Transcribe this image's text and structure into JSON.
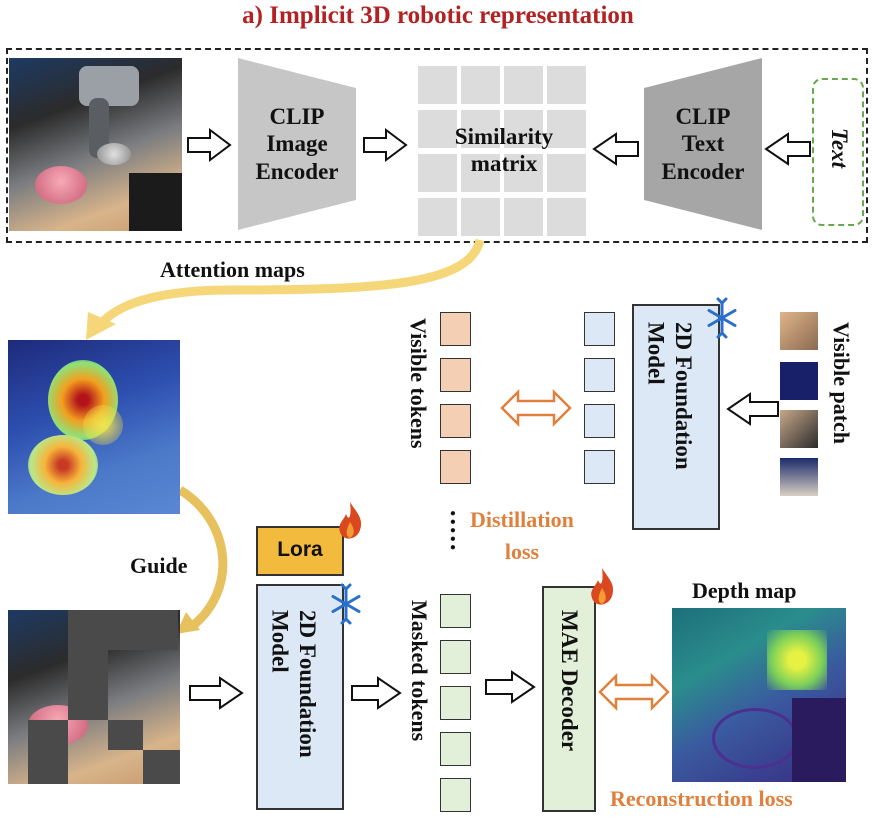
{
  "title": "a) Implicit 3D robotic representation",
  "top_row": {
    "clip_image_encoder": "CLIP\nImage\nEncoder",
    "similarity_matrix": "Similarity\nmatrix",
    "clip_text_encoder": "CLIP\nText\nEncoder",
    "text_input": "Text"
  },
  "labels": {
    "attention_maps": "Attention maps",
    "guide": "Guide",
    "lora": "Lora",
    "visible_tokens": "Visible tokens",
    "visible_patch": "Visible patch",
    "masked_tokens": "Masked tokens",
    "distillation_loss": "Distillation\nloss",
    "depth_map": "Depth map",
    "reconstruction_loss": "Reconstruction loss",
    "mae_decoder": "MAE Decoder",
    "foundation_model_top": "2D Foundation\nModel",
    "foundation_model_bottom": "2D Foundation\nModel",
    "ellipsis": "....."
  },
  "colors": {
    "title": "#b22222",
    "loss_text": "#e0803c",
    "visible_token": "#f4cfb4",
    "frozen_token": "#dce8f5",
    "masked_token": "#e2efd9",
    "lora": "#f2bb3d",
    "text_box_border": "#6aa84f",
    "attention_arrow": "#f5d77a"
  },
  "icons": [
    "snowflake-icon",
    "flame-icon"
  ]
}
